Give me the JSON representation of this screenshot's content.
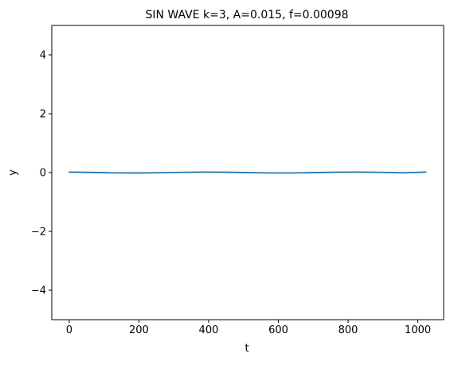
{
  "chart_data": {
    "type": "line",
    "title": "SIN WAVE k=3, A=0.015, f=0.00098",
    "xlabel": "t",
    "ylabel": "y",
    "xlim": [
      -50,
      1074
    ],
    "ylim": [
      -5,
      5
    ],
    "x_ticks": [
      0,
      200,
      400,
      600,
      800,
      1000
    ],
    "x_tick_labels": [
      "0",
      "200",
      "400",
      "600",
      "800",
      "1000"
    ],
    "y_ticks": [
      -4,
      -2,
      0,
      2,
      4
    ],
    "y_tick_labels": [
      "−4",
      "−2",
      "0",
      "2",
      "4"
    ],
    "grid": false,
    "series": [
      {
        "color": "#1f77b4",
        "x": [
          0,
          64,
          128,
          192,
          256,
          320,
          384,
          448,
          512,
          576,
          640,
          704,
          768,
          832,
          896,
          960,
          1023
        ],
        "y": [
          0.015,
          0.0045,
          -0.0092,
          -0.0145,
          -0.0077,
          0.0063,
          0.0149,
          0.0114,
          -0.0022,
          -0.0135,
          -0.0134,
          -0.0022,
          0.0114,
          0.0148,
          0.0063,
          -0.0078,
          0.015
        ]
      }
    ]
  }
}
